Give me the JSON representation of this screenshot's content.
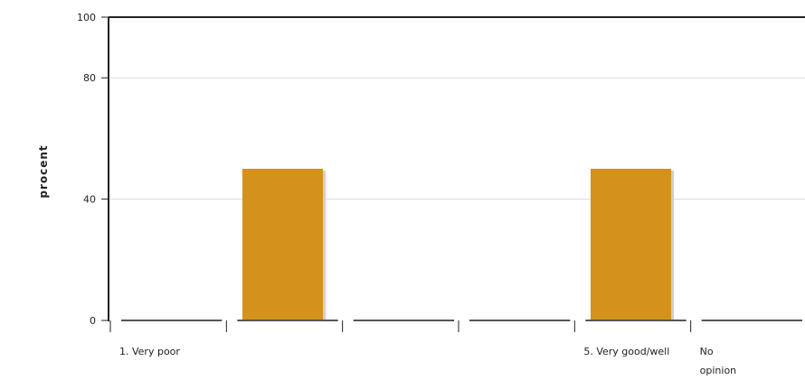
{
  "chart_data": {
    "type": "bar",
    "ylabel": "procent",
    "ylim": [
      0,
      100
    ],
    "y_ticks": [
      "100",
      "80",
      "40",
      "0"
    ],
    "y_tick_values": [
      100,
      80,
      40,
      0
    ],
    "bar_color": "#D4911B",
    "grid": true,
    "categories": [
      [
        "1. Very poor"
      ],
      [
        ""
      ],
      [
        ""
      ],
      [
        ""
      ],
      [
        "5. Very good/well"
      ],
      [
        "No",
        "opinion"
      ]
    ],
    "values": [
      0,
      50,
      0,
      0,
      50,
      0
    ]
  }
}
